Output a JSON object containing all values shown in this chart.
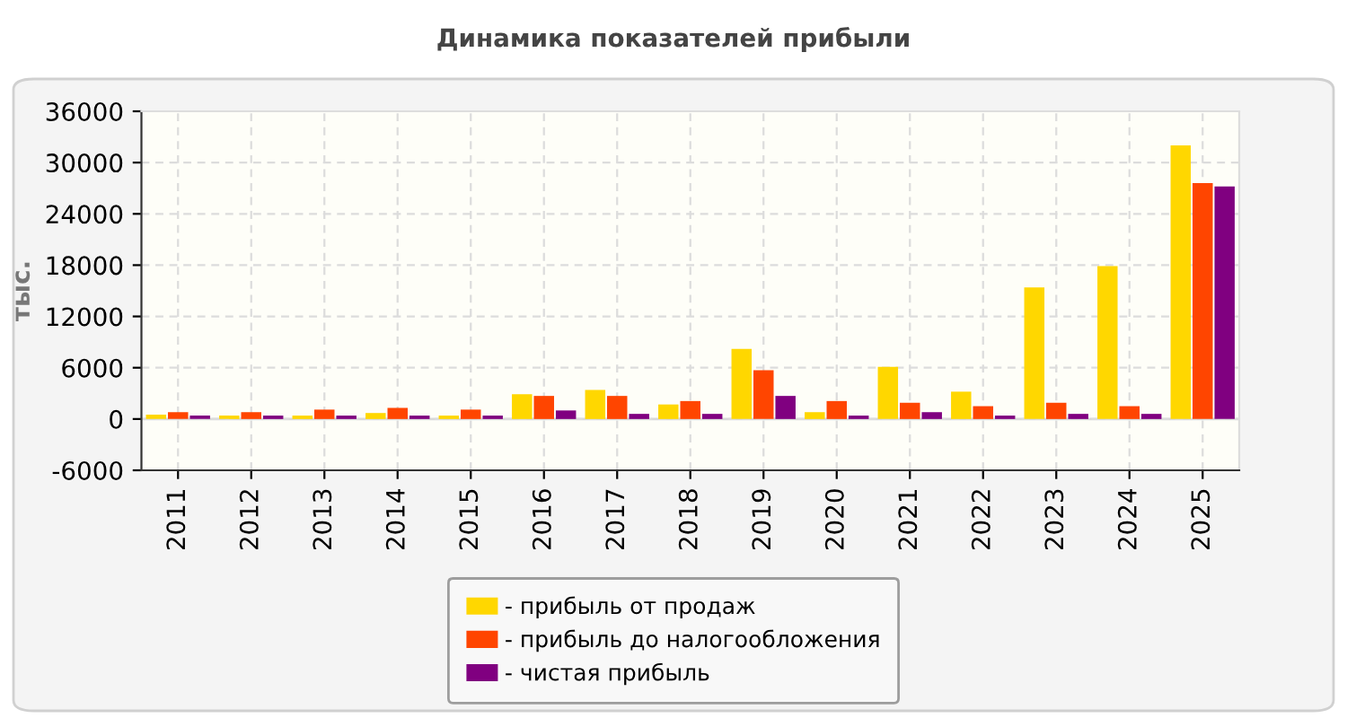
{
  "chart_data": {
    "type": "bar",
    "title": "Динамика показателей прибыли",
    "ylabel": "тыс.",
    "categories": [
      "2011",
      "2012",
      "2013",
      "2014",
      "2015",
      "2016",
      "2017",
      "2018",
      "2019",
      "2020",
      "2021",
      "2022",
      "2023",
      "2024",
      "2025"
    ],
    "series": [
      {
        "name": "- прибыль от продаж",
        "color": "#ffd700",
        "values": [
          500,
          400,
          400,
          700,
          400,
          2900,
          3400,
          1700,
          8200,
          800,
          6100,
          3200,
          15400,
          17900,
          32000
        ]
      },
      {
        "name": "- прибыль до налогообложения",
        "color": "#ff4500",
        "values": [
          800,
          800,
          1100,
          1300,
          1100,
          2700,
          2700,
          2100,
          5700,
          2100,
          1900,
          1500,
          1900,
          1500,
          27600
        ]
      },
      {
        "name": "- чистая прибыль",
        "color": "#800080",
        "values": [
          400,
          400,
          400,
          400,
          400,
          1000,
          600,
          600,
          2700,
          400,
          800,
          400,
          600,
          600,
          27200
        ]
      }
    ],
    "ylim": [
      -6000,
      36000
    ],
    "yticks": [
      -6000,
      0,
      6000,
      12000,
      18000,
      24000,
      30000,
      36000
    ],
    "grid": true,
    "legend": "bottom"
  }
}
